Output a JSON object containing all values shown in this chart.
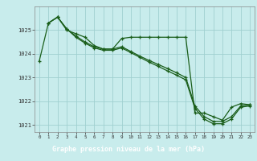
{
  "title": "Graphe pression niveau de la mer (hPa)",
  "bg_color": "#c8ecec",
  "plot_bg_color": "#c8ecec",
  "grid_color": "#a0d0d0",
  "line_color": "#1a5e1a",
  "label_bg_color": "#4a7a4a",
  "label_text_color": "#000000",
  "xlim": [
    -0.5,
    23.5
  ],
  "ylim": [
    1020.7,
    1026.0
  ],
  "yticks": [
    1021,
    1022,
    1023,
    1024,
    1025
  ],
  "xticks": [
    0,
    1,
    2,
    3,
    4,
    5,
    6,
    7,
    8,
    9,
    10,
    11,
    12,
    13,
    14,
    15,
    16,
    17,
    18,
    19,
    20,
    21,
    22,
    23
  ],
  "series1_x": [
    0,
    1,
    2,
    3,
    4,
    5,
    6,
    7,
    8,
    9,
    10,
    11,
    12,
    13,
    14,
    15,
    16,
    17,
    18,
    19,
    20,
    21,
    22,
    23
  ],
  "series1_y": [
    1023.7,
    1025.3,
    1025.55,
    1025.0,
    1024.85,
    1024.7,
    1024.35,
    1024.2,
    1024.2,
    1024.65,
    1024.7,
    1024.7,
    1024.7,
    1024.7,
    1024.7,
    1024.7,
    1024.7,
    1021.5,
    1021.5,
    1021.35,
    1021.2,
    1021.75,
    1021.9,
    1021.85
  ],
  "series2_x": [
    1,
    2,
    3,
    4,
    5,
    6,
    7,
    8,
    9,
    10,
    11,
    12,
    13,
    14,
    15,
    16,
    17,
    18,
    19,
    20,
    21,
    22,
    23
  ],
  "series2_y": [
    1025.3,
    1025.55,
    1025.05,
    1024.75,
    1024.5,
    1024.3,
    1024.2,
    1024.2,
    1024.3,
    1024.1,
    1023.9,
    1023.72,
    1023.55,
    1023.38,
    1023.2,
    1023.0,
    1021.8,
    1021.35,
    1021.15,
    1021.15,
    1021.35,
    1021.8,
    1021.85
  ],
  "series3_x": [
    1,
    2,
    3,
    4,
    5,
    6,
    7,
    8,
    9,
    10,
    11,
    12,
    13,
    14,
    15,
    16,
    17,
    18,
    19,
    20,
    21,
    22,
    23
  ],
  "series3_y": [
    1025.3,
    1025.55,
    1025.05,
    1024.7,
    1024.45,
    1024.25,
    1024.15,
    1024.15,
    1024.25,
    1024.05,
    1023.85,
    1023.65,
    1023.47,
    1023.28,
    1023.1,
    1022.9,
    1021.7,
    1021.25,
    1021.05,
    1021.05,
    1021.25,
    1021.75,
    1021.8
  ]
}
